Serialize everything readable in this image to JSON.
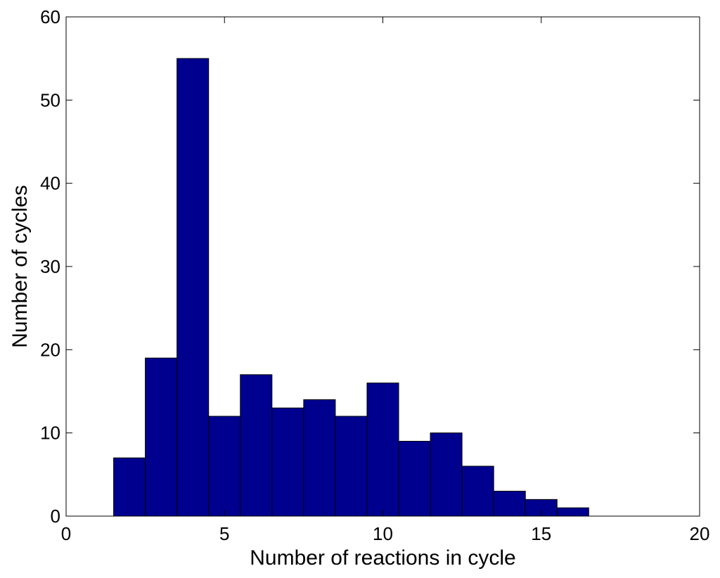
{
  "chart_data": {
    "type": "bar",
    "title": "",
    "xlabel": "Number of reactions in cycle",
    "ylabel": "Number of cycles",
    "xlim": [
      0,
      20
    ],
    "ylim": [
      0,
      60
    ],
    "xticks": [
      0,
      5,
      10,
      15,
      20
    ],
    "yticks": [
      0,
      10,
      20,
      30,
      40,
      50,
      60
    ],
    "grid": false,
    "bin_width": 1,
    "x": [
      2,
      3,
      4,
      5,
      6,
      7,
      8,
      9,
      10,
      11,
      12,
      13,
      14,
      15,
      16
    ],
    "values": [
      7,
      19,
      55,
      12,
      17,
      13,
      14,
      12,
      16,
      9,
      10,
      6,
      3,
      2,
      1
    ],
    "bar_color": "#00008f",
    "edge_color": "#000000"
  }
}
